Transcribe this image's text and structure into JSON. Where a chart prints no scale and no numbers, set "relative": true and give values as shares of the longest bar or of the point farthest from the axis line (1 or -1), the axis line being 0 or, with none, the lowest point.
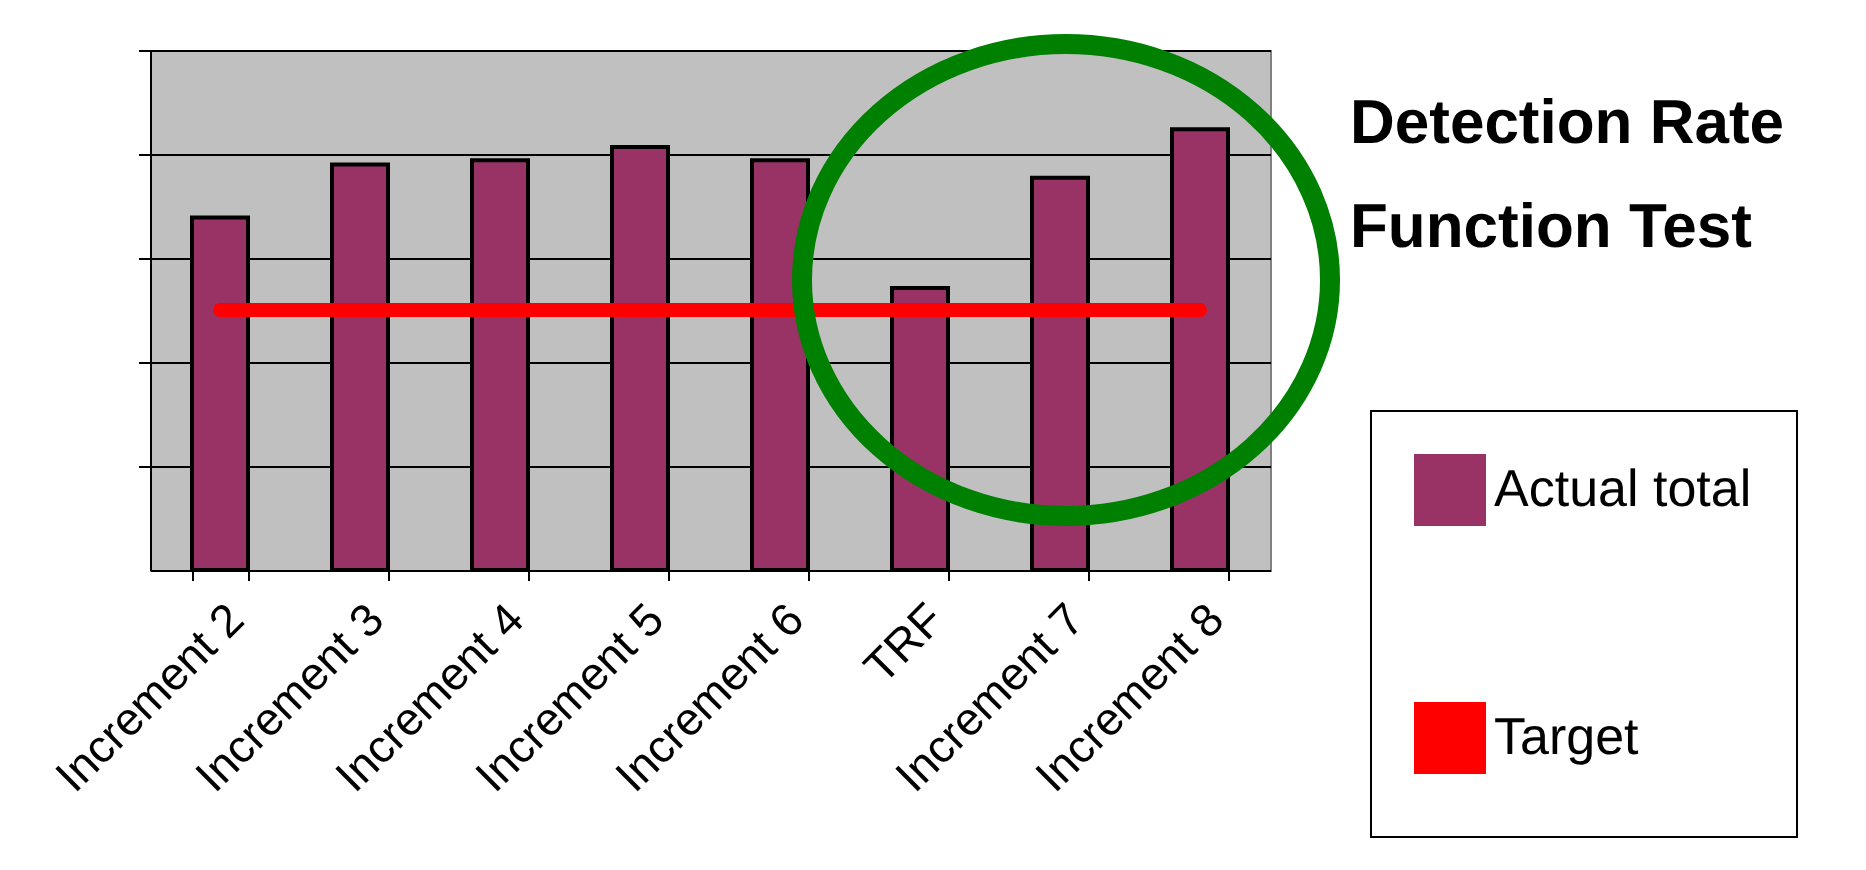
{
  "chart_data": {
    "type": "bar",
    "title": "Detection Rate Function Test",
    "relative": true,
    "grid": "y",
    "legend": "right",
    "marker": "none",
    "categories": [
      "Increment 2",
      "Increment 3",
      "Increment 4",
      "Increment 5",
      "Increment 6",
      "TRF",
      "Increment 7",
      "Increment 8"
    ],
    "series": [
      {
        "name": "Actual total",
        "color": "#993366",
        "values": [
          0.8,
          0.92,
          0.93,
          0.96,
          0.93,
          0.64,
          0.89,
          1.0
        ]
      },
      {
        "name": "Target",
        "type": "line",
        "color": "#ff0000",
        "values": [
          0.59,
          0.59,
          0.59,
          0.59,
          0.59,
          0.59,
          0.59,
          0.59
        ]
      }
    ]
  }
}
